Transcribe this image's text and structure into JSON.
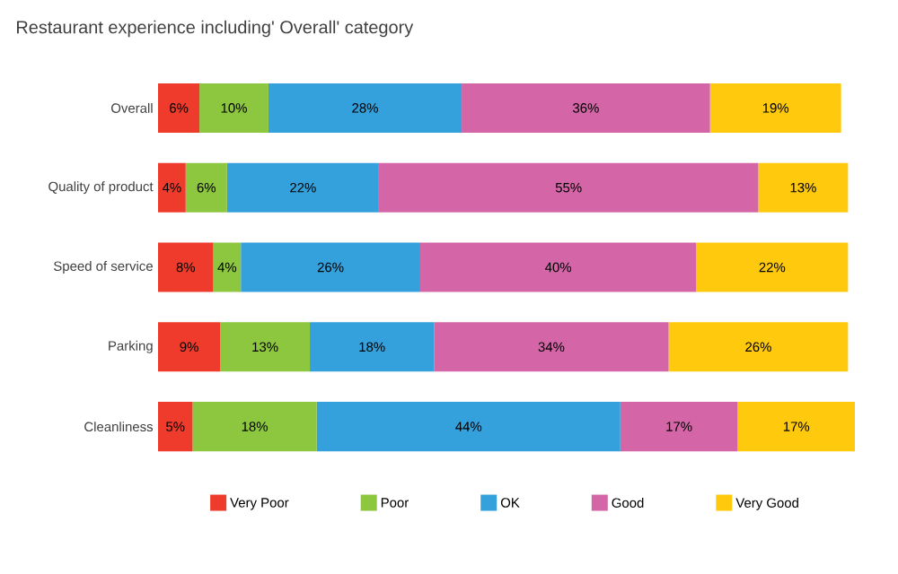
{
  "chart_data": {
    "type": "bar",
    "orientation": "horizontal",
    "stacked": true,
    "title": "Restaurant experience including' Overall' category",
    "legend": "bottom",
    "categories": [
      "Overall",
      "Quality of product",
      "Speed of service",
      "Parking",
      "Cleanliness"
    ],
    "series": [
      {
        "name": "Very Poor",
        "color": "#ee3b2c",
        "values": [
          6,
          4,
          8,
          9,
          5
        ],
        "value_labels": [
          "6%",
          "4%",
          "8%",
          "9%",
          "5%"
        ]
      },
      {
        "name": "Poor",
        "color": "#8dc63f",
        "values": [
          10,
          6,
          4,
          13,
          18
        ],
        "value_labels": [
          "10%",
          "6%",
          "4%",
          "13%",
          "18%"
        ]
      },
      {
        "name": "OK",
        "color": "#34a0dc",
        "values": [
          28,
          22,
          26,
          18,
          44
        ],
        "value_labels": [
          "28%",
          "22%",
          "26%",
          "18%",
          "44%"
        ]
      },
      {
        "name": "Good",
        "color": "#d466a8",
        "values": [
          36,
          55,
          40,
          34,
          17
        ],
        "value_labels": [
          "36%",
          "55%",
          "40%",
          "34%",
          "17%"
        ]
      },
      {
        "name": "Very Good",
        "color": "#ffc90e",
        "values": [
          19,
          13,
          22,
          26,
          17
        ],
        "value_labels": [
          "19%",
          "13%",
          "22%",
          "26%",
          "17%"
        ]
      }
    ]
  }
}
